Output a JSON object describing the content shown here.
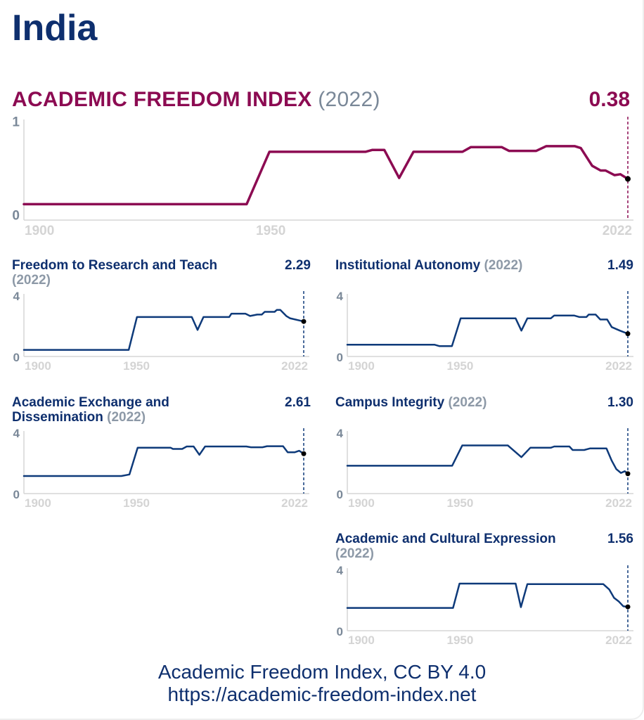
{
  "country": "India",
  "main": {
    "title": "ACADEMIC FREEDOM INDEX",
    "year": "(2022)",
    "value": "0.38",
    "color": "#8c0b52"
  },
  "footer": {
    "line1": "Academic Freedom Index, CC BY 4.0",
    "line2": "https://academic-freedom-index.net"
  },
  "chart_data": [
    {
      "type": "line",
      "title": "ACADEMIC FREEDOM INDEX",
      "ylim": [
        0,
        1
      ],
      "yticks": [
        "0",
        "1"
      ],
      "xlim": [
        1900,
        2022
      ],
      "xticks": [
        "1900",
        "1950",
        "2022"
      ],
      "color": "#8c0b52",
      "marker_year": 2022,
      "x": [
        1900,
        1945,
        1949.6,
        1969,
        1970.4,
        1972.8,
        1975.8,
        1978.7,
        1988.6,
        1990.3,
        1996.5,
        1998,
        2003.5,
        2005.5,
        2011.3,
        2012.5,
        2014.8,
        2016.5,
        2017.5,
        2019.3,
        2020.5,
        2022
      ],
      "y": [
        0.11,
        0.11,
        0.67,
        0.67,
        0.69,
        0.69,
        0.39,
        0.67,
        0.67,
        0.72,
        0.72,
        0.68,
        0.68,
        0.73,
        0.73,
        0.71,
        0.52,
        0.47,
        0.47,
        0.42,
        0.43,
        0.38
      ]
    },
    {
      "type": "line",
      "title": "Freedom to Research and Teach",
      "year": "(2022)",
      "value": "2.29",
      "ylim": [
        0,
        4
      ],
      "yticks": [
        "0",
        "4"
      ],
      "xlim": [
        1900,
        2022
      ],
      "xticks": [
        "1900",
        "1950",
        "2022"
      ],
      "color": "#0e3a7a",
      "marker_year": 2022,
      "x": [
        1900,
        1945.7,
        1949.3,
        1973.2,
        1975.7,
        1978.3,
        1989.5,
        1990.5,
        1996.6,
        1998.6,
        2001.7,
        2003.7,
        2005,
        2009.3,
        2010.3,
        2011.8,
        2014.4,
        2016,
        2022
      ],
      "y": [
        0.43,
        0.43,
        2.58,
        2.58,
        1.74,
        2.58,
        2.58,
        2.8,
        2.8,
        2.65,
        2.74,
        2.74,
        2.92,
        2.92,
        3.05,
        3.05,
        2.65,
        2.5,
        2.29
      ]
    },
    {
      "type": "line",
      "title": "Institutional Autonomy",
      "year": "(2022)",
      "value": "1.49",
      "ylim": [
        0,
        4
      ],
      "yticks": [
        "0",
        "4"
      ],
      "xlim": [
        1900,
        2022
      ],
      "xticks": [
        "1900",
        "1950",
        "2022"
      ],
      "color": "#0e3a7a",
      "marker_year": 2022,
      "x": [
        1900,
        1938,
        1940,
        1945.5,
        1949.3,
        1973.2,
        1975.7,
        1978.3,
        1988.5,
        1990,
        1998.6,
        2001,
        2004,
        2005,
        2008,
        2010,
        2013,
        2015,
        2018.5,
        2022
      ],
      "y": [
        0.77,
        0.77,
        0.68,
        0.68,
        2.49,
        2.49,
        1.69,
        2.49,
        2.49,
        2.68,
        2.68,
        2.58,
        2.58,
        2.74,
        2.74,
        2.42,
        2.42,
        1.92,
        1.69,
        1.49
      ]
    },
    {
      "type": "line",
      "title": "Academic Exchange and Dissemination",
      "year": "(2022)",
      "value": "2.61",
      "ylim": [
        0,
        4
      ],
      "yticks": [
        "0",
        "4"
      ],
      "xlim": [
        1900,
        2022
      ],
      "xticks": [
        "1900",
        "1950",
        "2022"
      ],
      "color": "#0e3a7a",
      "marker_year": 2022,
      "x": [
        1900,
        1942.5,
        1946,
        1949.6,
        1964,
        1965,
        1969,
        1971,
        1974,
        1976.5,
        1979,
        1997,
        1999,
        2004,
        2006,
        2013,
        2015,
        2018,
        2020,
        2022
      ],
      "y": [
        1.15,
        1.15,
        1.25,
        3.0,
        3.0,
        2.92,
        2.92,
        3.08,
        3.08,
        2.54,
        3.08,
        3.08,
        3.03,
        3.03,
        3.1,
        3.1,
        2.7,
        2.7,
        2.8,
        2.61
      ]
    },
    {
      "type": "line",
      "title": "Campus Integrity",
      "year": "(2022)",
      "value": "1.30",
      "ylim": [
        0,
        4
      ],
      "yticks": [
        "0",
        "4"
      ],
      "xlim": [
        1900,
        2022
      ],
      "xticks": [
        "1900",
        "1950",
        "2022"
      ],
      "color": "#0e3a7a",
      "marker_year": 2022,
      "x": [
        1900,
        1945.6,
        1950,
        1969.8,
        1975.7,
        1979.6,
        1988.5,
        1990,
        1996.6,
        1998,
        2003,
        2005.5,
        2012.7,
        2015,
        2017,
        2019,
        2020.7,
        2022
      ],
      "y": [
        1.82,
        1.82,
        3.15,
        3.15,
        2.38,
        3.0,
        3.0,
        3.08,
        3.08,
        2.85,
        2.85,
        2.95,
        2.95,
        2.15,
        1.6,
        1.35,
        1.46,
        1.3
      ]
    },
    {
      "type": "line",
      "title": "Academic and Cultural Expression",
      "year": "(2022)",
      "value": "1.56",
      "ylim": [
        0,
        4
      ],
      "yticks": [
        "0",
        "4"
      ],
      "xlim": [
        1900,
        2022
      ],
      "xticks": [
        "1900",
        "1950",
        "2022"
      ],
      "color": "#0e3a7a",
      "marker_year": 2022,
      "x": [
        1900,
        1946,
        1948.8,
        1973.2,
        1975.5,
        1978.3,
        2011.3,
        2013.9,
        2016,
        2018,
        2020,
        2022
      ],
      "y": [
        1.49,
        1.49,
        3.08,
        3.08,
        1.54,
        3.05,
        3.05,
        2.7,
        2.15,
        1.92,
        1.6,
        1.56
      ]
    }
  ]
}
